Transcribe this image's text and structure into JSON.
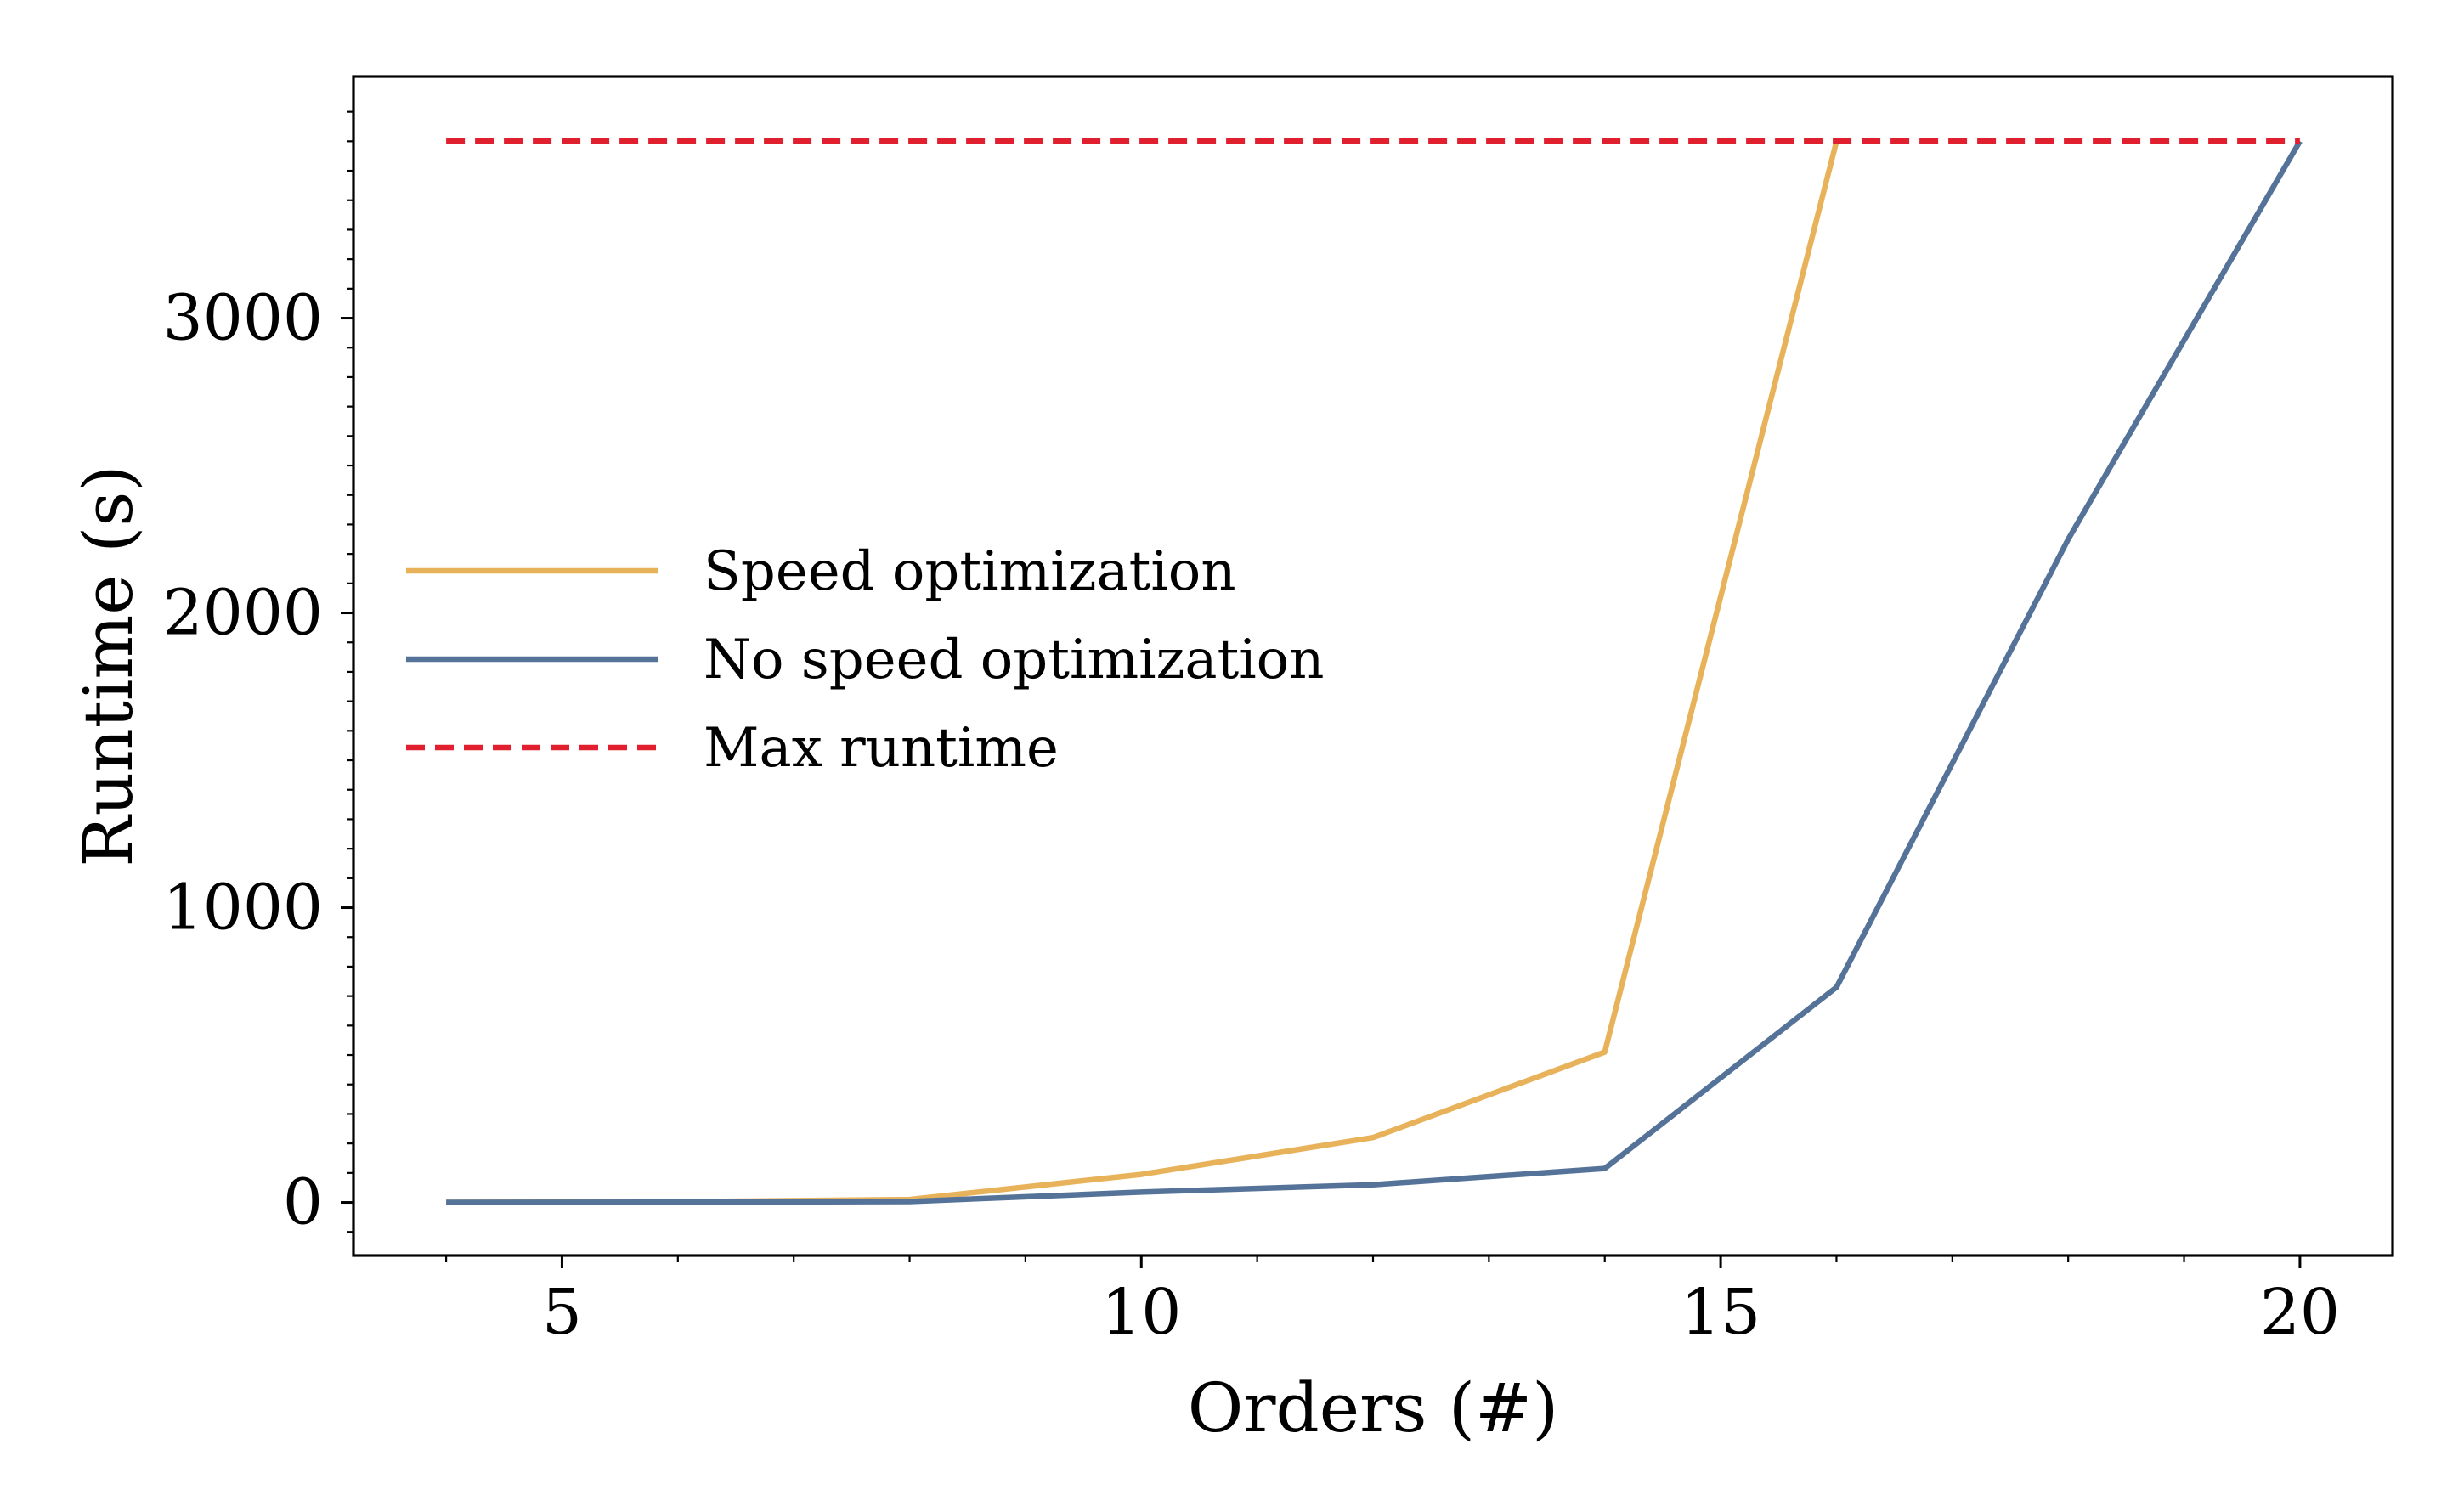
{
  "chart_data": {
    "type": "line",
    "xlabel": "Orders (#)",
    "ylabel": "Runtime (s)",
    "xlim": [
      3.2,
      20.8
    ],
    "ylim": [
      -180,
      3820
    ],
    "xticks": [
      5,
      10,
      15,
      20
    ],
    "yticks": [
      0,
      1000,
      2000,
      3000
    ],
    "xminor": [
      4,
      6,
      7,
      8,
      9,
      11,
      12,
      13,
      14,
      16,
      17,
      18,
      19
    ],
    "yminor": [
      -100,
      100,
      200,
      300,
      400,
      500,
      600,
      700,
      800,
      900,
      1100,
      1200,
      1300,
      1400,
      1500,
      1600,
      1700,
      1800,
      1900,
      2100,
      2200,
      2300,
      2400,
      2500,
      2600,
      2700,
      2800,
      2900,
      3100,
      3200,
      3300,
      3400,
      3500,
      3600,
      3700
    ],
    "grid": false,
    "legend_position": "center-left",
    "series": [
      {
        "name": "Speed optimization",
        "color": "#E8B25A",
        "style": "solid",
        "x": [
          4,
          6,
          8,
          10,
          12,
          14,
          16
        ],
        "y": [
          0,
          2,
          10,
          95,
          220,
          510,
          3600
        ]
      },
      {
        "name": "No speed optimization",
        "color": "#557398",
        "style": "solid",
        "x": [
          4,
          6,
          8,
          10,
          12,
          14,
          16,
          18,
          20
        ],
        "y": [
          0,
          1,
          3,
          35,
          60,
          115,
          730,
          2250,
          3600
        ]
      },
      {
        "name": "Max runtime",
        "color": "#E0202E",
        "style": "dashed",
        "x": [
          4,
          20
        ],
        "y": [
          3600,
          3600
        ]
      }
    ]
  }
}
